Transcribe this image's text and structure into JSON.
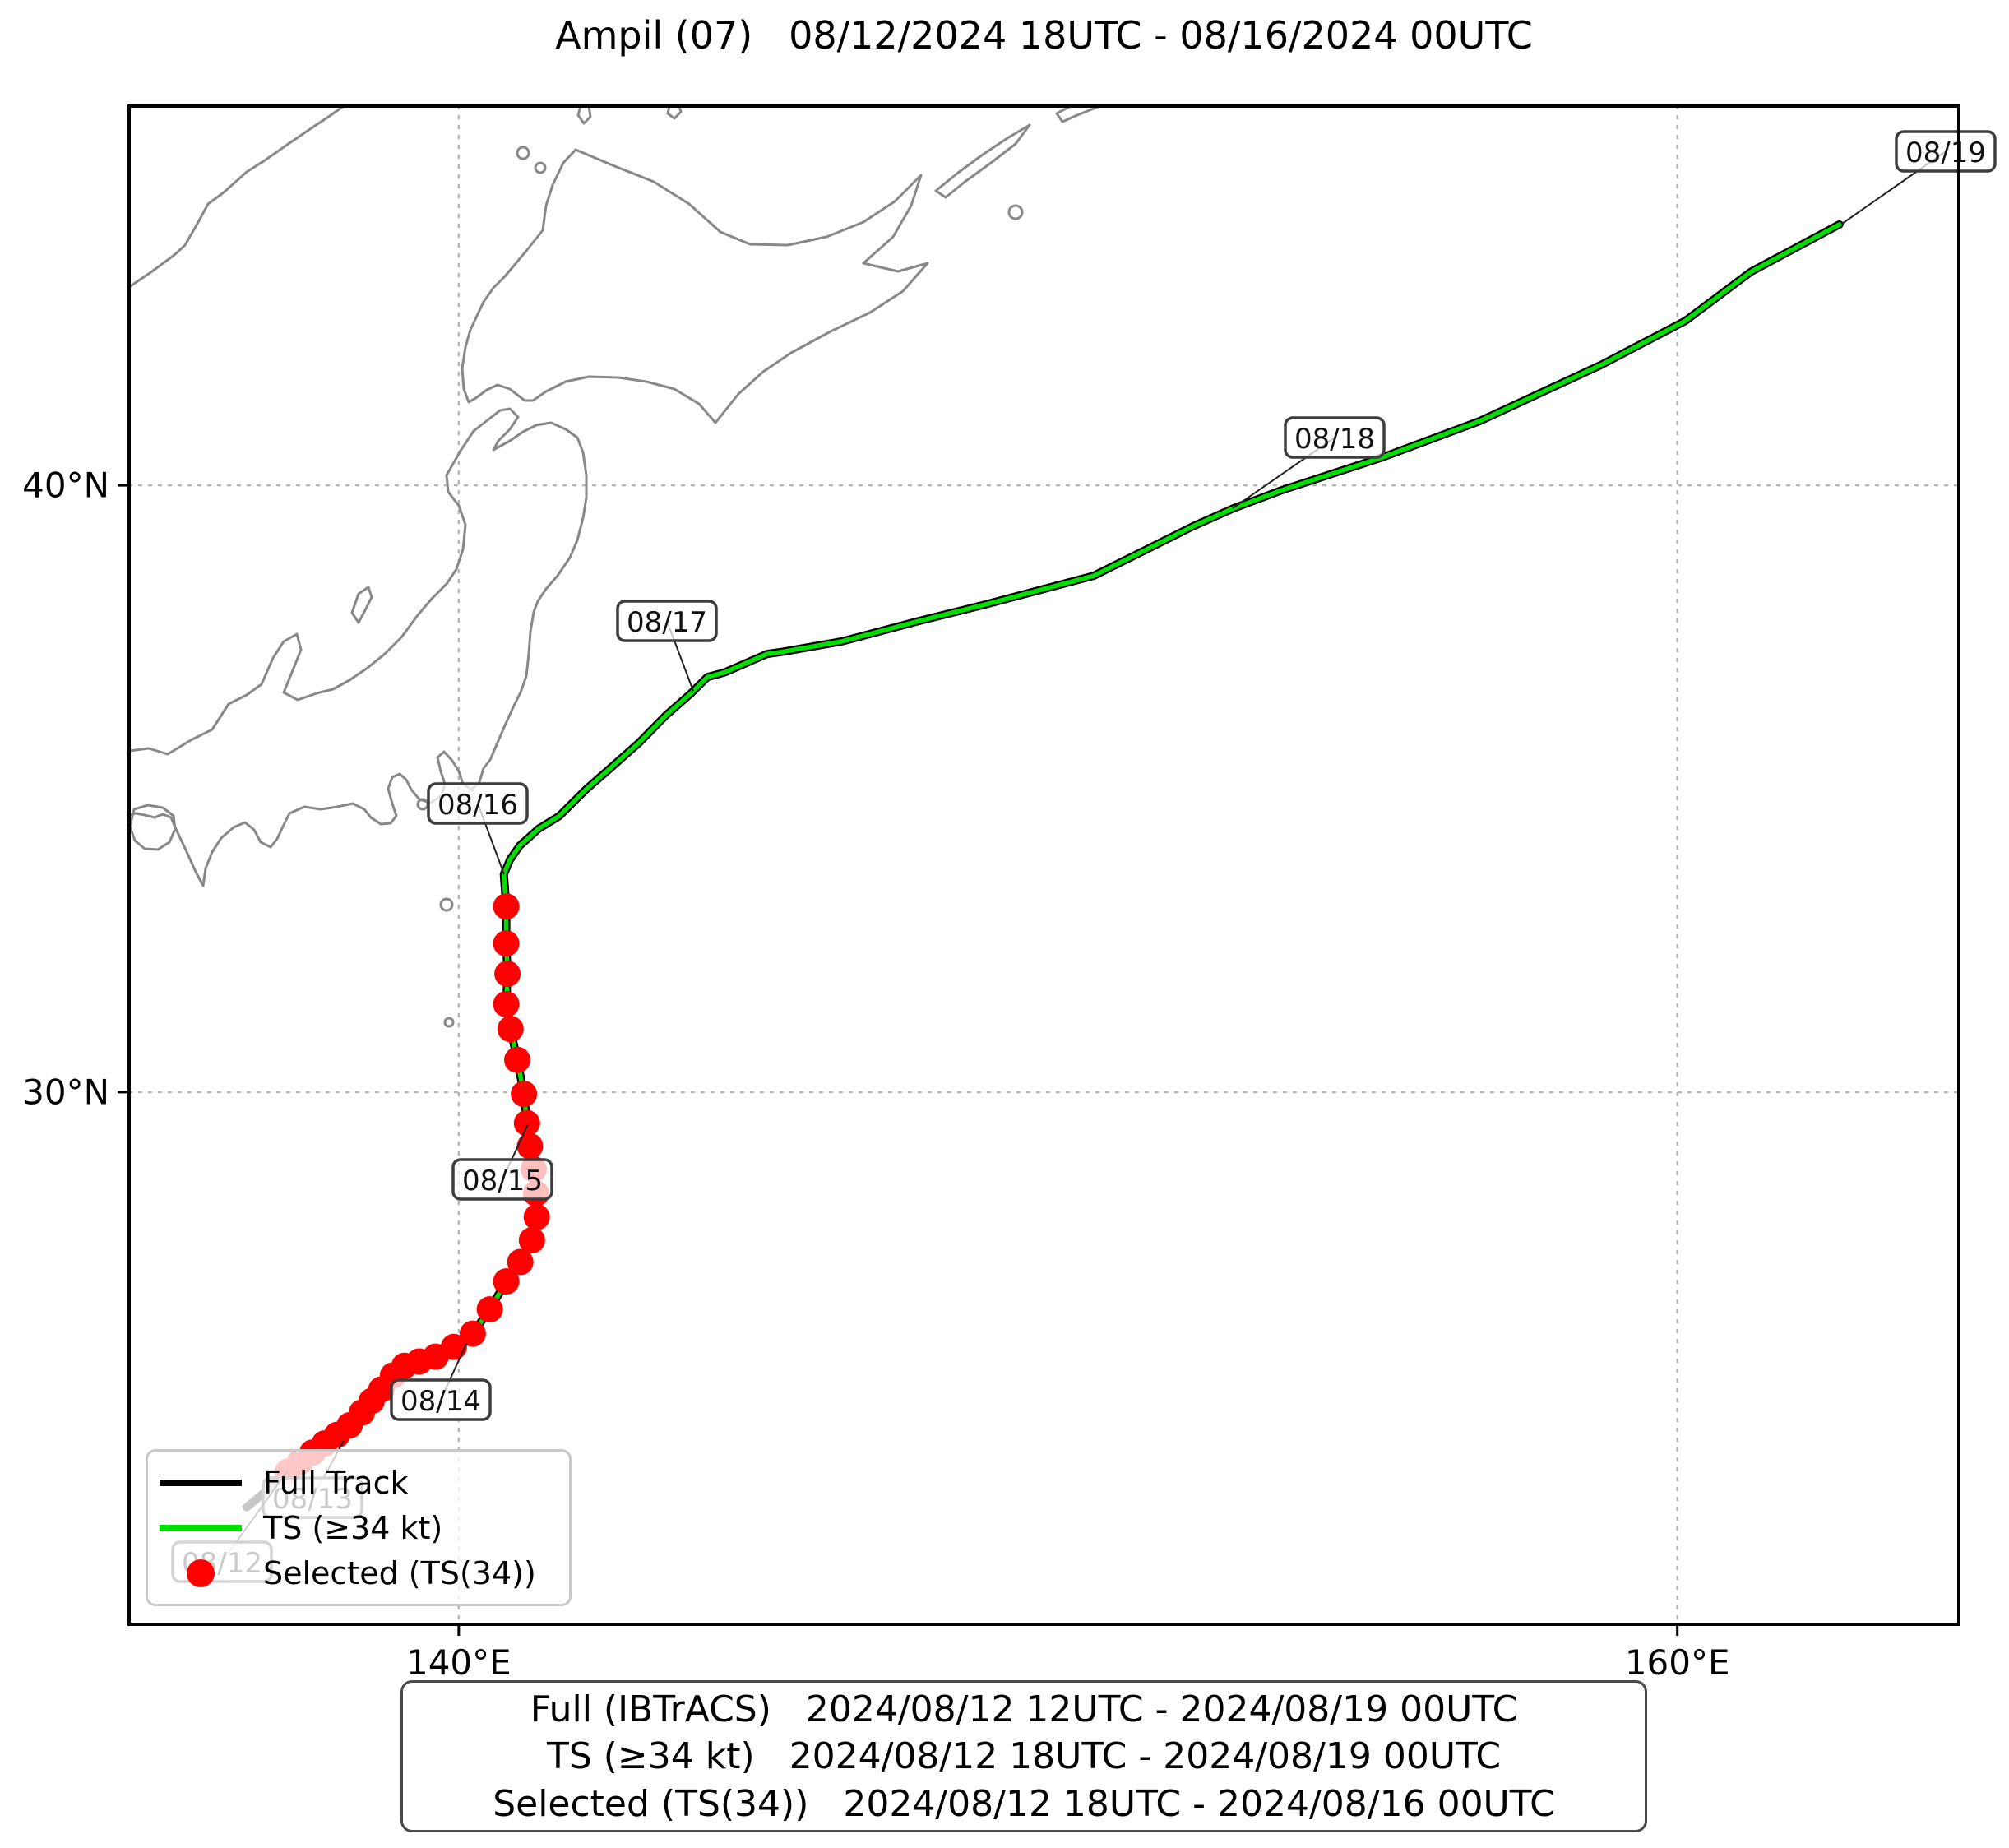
{
  "title": "Ampil (07)   08/12/2024 18UTC - 08/16/2024 00UTC",
  "colors": {
    "full_track": "#000000",
    "ts_line": "#00E000",
    "selected_dot": "#FF0000",
    "coastline": "#888888",
    "gridline": "#b5b5b5",
    "axes_border": "#000000",
    "date_box_border": "#3d3d3d",
    "legend_border": "#c8c8c8"
  },
  "legend": {
    "items": [
      {
        "label": "Full Track",
        "swatch": "line",
        "color": "#000000"
      },
      {
        "label": "TS (≥34 kt)",
        "swatch": "line",
        "color": "#00E000"
      },
      {
        "label": "Selected (TS(34))",
        "swatch": "dot",
        "color": "#FF0000"
      }
    ]
  },
  "info_box": {
    "lines": [
      "Full (IBTrACS)   2024/08/12 12UTC - 2024/08/19 00UTC",
      "TS (≥34 kt)   2024/08/12 18UTC - 2024/08/19 00UTC",
      "Selected (TS(34))   2024/08/12 18UTC - 2024/08/16 00UTC"
    ]
  },
  "chart_data": {
    "type": "line",
    "title": "Ampil (07)   08/12/2024 18UTC - 08/16/2024 00UTC",
    "geo_axes": true,
    "lon_range": [
      134.59,
      164.62
    ],
    "lat_range": [
      21.23,
      46.25
    ],
    "grid": "dotted",
    "x_ticks": [
      {
        "label": "140°E",
        "lon": 140
      },
      {
        "label": "160°E",
        "lon": 160
      }
    ],
    "y_ticks": [
      {
        "label": "40°N",
        "lat": 40
      },
      {
        "label": "30°N",
        "lat": 30
      }
    ],
    "series": [
      {
        "name": "Full Track",
        "color": "#000000",
        "style": "line",
        "width": 10,
        "segments": [
          "pre_ts",
          "selected",
          "post_ts"
        ]
      },
      {
        "name": "TS (≥34 kt)",
        "color": "#00E000",
        "style": "line",
        "width": 5.5,
        "segments": [
          "selected",
          "post_ts"
        ]
      },
      {
        "name": "Selected (TS(34))",
        "color": "#FF0000",
        "style": "markers",
        "radius": 16,
        "segments": [
          "selected"
        ]
      }
    ],
    "points": {
      "pre_ts": [
        [
          136.52,
          23.16
        ],
        [
          136.86,
          23.44
        ],
        [
          137.19,
          23.74
        ]
      ],
      "selected": [
        [
          137.19,
          23.74
        ],
        [
          137.39,
          23.9
        ],
        [
          137.6,
          24.06
        ],
        [
          137.8,
          24.21
        ],
        [
          138.0,
          24.35
        ],
        [
          138.21,
          24.51
        ],
        [
          138.41,
          24.72
        ],
        [
          138.57,
          24.91
        ],
        [
          138.73,
          25.1
        ],
        [
          138.92,
          25.33
        ],
        [
          139.11,
          25.49
        ],
        [
          139.35,
          25.56
        ],
        [
          139.62,
          25.64
        ],
        [
          139.92,
          25.8
        ],
        [
          140.23,
          26.02
        ],
        [
          140.51,
          26.42
        ],
        [
          140.78,
          26.88
        ],
        [
          141.01,
          27.2
        ],
        [
          141.2,
          27.56
        ],
        [
          141.28,
          27.94
        ],
        [
          141.27,
          28.33
        ],
        [
          141.23,
          28.73
        ],
        [
          141.17,
          29.11
        ],
        [
          141.12,
          29.49
        ],
        [
          141.07,
          29.97
        ],
        [
          140.96,
          30.53
        ],
        [
          140.85,
          31.04
        ],
        [
          140.78,
          31.45
        ],
        [
          140.8,
          31.95
        ],
        [
          140.78,
          32.45
        ],
        [
          140.78,
          33.06
        ]
      ],
      "post_ts": [
        [
          140.74,
          33.59
        ],
        [
          140.84,
          33.83
        ],
        [
          141.0,
          34.06
        ],
        [
          141.31,
          34.34
        ],
        [
          141.65,
          34.55
        ],
        [
          142.09,
          34.99
        ],
        [
          142.5,
          35.35
        ],
        [
          142.96,
          35.76
        ],
        [
          143.4,
          36.21
        ],
        [
          143.81,
          36.57
        ],
        [
          144.08,
          36.84
        ],
        [
          144.37,
          36.92
        ],
        [
          145.06,
          37.22
        ],
        [
          145.33,
          37.26
        ],
        [
          146.3,
          37.43
        ],
        [
          147.5,
          37.75
        ],
        [
          148.66,
          38.04
        ],
        [
          150.42,
          38.51
        ],
        [
          152.04,
          39.32
        ],
        [
          152.71,
          39.62
        ],
        [
          153.48,
          39.91
        ],
        [
          155.18,
          40.47
        ],
        [
          156.76,
          41.06
        ],
        [
          158.76,
          41.99
        ],
        [
          160.13,
          42.71
        ],
        [
          161.21,
          43.52
        ],
        [
          162.66,
          44.3
        ]
      ]
    },
    "annotations": [
      {
        "text": "08/19",
        "bx": 2366,
        "by": 184,
        "ax": 2240,
        "ay": 272
      },
      {
        "text": "08/18",
        "bx": 1623,
        "by": 532,
        "ax": 1499,
        "ay": 618
      },
      {
        "text": "08/17",
        "bx": 811,
        "by": 755,
        "ax": 843,
        "ay": 840
      },
      {
        "text": "08/16",
        "bx": 581,
        "by": 977,
        "ax": 613,
        "ay": 1063
      },
      {
        "text": "08/15",
        "bx": 611,
        "by": 1434,
        "ax": 642,
        "ay": 1367
      },
      {
        "text": "08/14",
        "bx": 536,
        "by": 1702,
        "ax": 567,
        "ay": 1634
      },
      {
        "text": "08/13",
        "bx": 380,
        "by": 1821,
        "ax": 418,
        "ay": 1752
      },
      {
        "text": "08/12",
        "bx": 270,
        "by": 1899,
        "ax": 350,
        "ay": 1788
      }
    ]
  }
}
